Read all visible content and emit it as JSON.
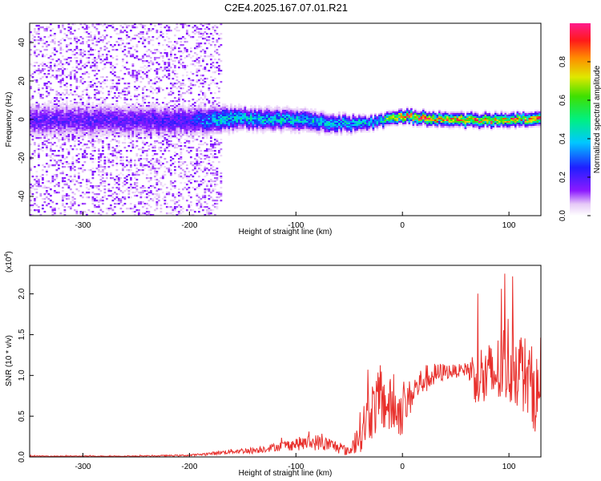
{
  "title": "C2E4.2025.167.07.01.R21",
  "chart_data": [
    {
      "type": "heatmap",
      "xlabel": "Height of straight line (km)",
      "ylabel": "Frequency (Hz)",
      "xlim": [
        -350,
        130
      ],
      "ylim": [
        -50,
        50
      ],
      "xticks": [
        -300,
        -200,
        -100,
        0,
        100
      ],
      "yticks": [
        -40,
        -20,
        0,
        20,
        40
      ],
      "colorbar": {
        "label": "Normalized spectral amplitude",
        "range": [
          0.0,
          1.0
        ],
        "ticks": [
          "0.0",
          "0.2",
          "0.4",
          "0.6",
          "0.8"
        ],
        "colormap": "rainbow (white-violet-blue-cyan-green-yellow-red-magenta)"
      },
      "ridge": {
        "description": "band of energy centered near 0 Hz",
        "x": [
          -350,
          -300,
          -250,
          -200,
          -175,
          -150,
          -100,
          -50,
          -25,
          0,
          50,
          100,
          130
        ],
        "center_hz": [
          0,
          0,
          0,
          0,
          0,
          1,
          0,
          -2,
          -1,
          2,
          0,
          0,
          1
        ],
        "half_width_hz": [
          8,
          8,
          8,
          7,
          6,
          5,
          5,
          4,
          3,
          3,
          3,
          3,
          3
        ],
        "peak_amplitude": [
          0.2,
          0.2,
          0.2,
          0.25,
          0.45,
          0.45,
          0.45,
          0.45,
          0.5,
          0.9,
          0.9,
          0.9,
          0.9
        ]
      }
    },
    {
      "type": "line",
      "xlabel": "Height of straight line (km)",
      "ylabel": "SNR (10 * v/v)",
      "yscale_note": "(x10",
      "yscale_exp": "4",
      "xlim": [
        -350,
        130
      ],
      "ylim": [
        0,
        2.35
      ],
      "xticks": [
        -300,
        -200,
        -100,
        0,
        100
      ],
      "yticks": [
        "0.0",
        "0.5",
        "1.0",
        "1.5",
        "2.0"
      ],
      "series": [
        {
          "color": "#e8302c",
          "x": [
            -350,
            -300,
            -250,
            -200,
            -180,
            -160,
            -140,
            -120,
            -100,
            -80,
            -60,
            -50,
            -40,
            -30,
            -20,
            -10,
            0,
            10,
            20,
            30,
            40,
            50,
            60,
            70,
            80,
            90,
            100,
            110,
            120,
            130
          ],
          "y": [
            0.01,
            0.01,
            0.01,
            0.02,
            0.04,
            0.07,
            0.08,
            0.12,
            0.16,
            0.18,
            0.12,
            0.06,
            0.3,
            0.55,
            0.7,
            0.6,
            0.55,
            0.8,
            0.95,
            1.0,
            1.05,
            1.05,
            1.08,
            1.0,
            0.95,
            1.05,
            1.2,
            1.1,
            0.9,
            0.7
          ],
          "spread": [
            0.005,
            0.005,
            0.006,
            0.01,
            0.02,
            0.03,
            0.04,
            0.05,
            0.08,
            0.1,
            0.08,
            0.05,
            0.25,
            0.35,
            0.4,
            0.35,
            0.3,
            0.2,
            0.18,
            0.15,
            0.1,
            0.08,
            0.08,
            0.4,
            0.45,
            0.45,
            0.6,
            0.5,
            0.5,
            0.5
          ]
        }
      ]
    }
  ]
}
